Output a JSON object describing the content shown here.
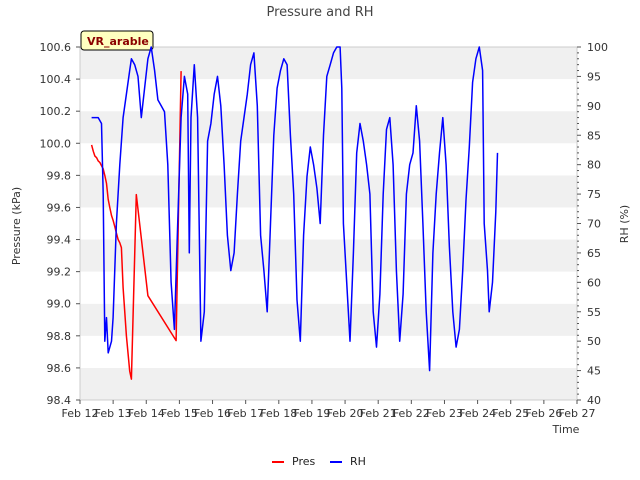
{
  "chart_data": {
    "type": "line",
    "title": "Pressure and RH",
    "xlabel": "Time",
    "ylabel_left": "Pressure (kPa)",
    "ylabel_right": "RH (%)",
    "badge": "VR_arable",
    "x_ticks": [
      "Feb 12",
      "Feb 13",
      "Feb 14",
      "Feb 15",
      "Feb 16",
      "Feb 17",
      "Feb 18",
      "Feb 19",
      "Feb 20",
      "Feb 21",
      "Feb 22",
      "Feb 23",
      "Feb 24",
      "Feb 25",
      "Feb 26",
      "Feb 27"
    ],
    "ylim_left": [
      98.4,
      100.6
    ],
    "ylim_right": [
      40,
      100
    ],
    "y_ticks_left": [
      "98.4",
      "98.6",
      "98.8",
      "99.0",
      "99.2",
      "99.4",
      "99.6",
      "99.8",
      "100.0",
      "100.2",
      "100.4",
      "100.6"
    ],
    "y_ticks_right": [
      "40",
      "45",
      "50",
      "55",
      "60",
      "65",
      "70",
      "75",
      "80",
      "85",
      "90",
      "95",
      "100"
    ],
    "grid": "horizontal bands",
    "legend_position": "bottom-center",
    "colors": {
      "Pres": "#ff0000",
      "RH": "#0000ff"
    },
    "series": [
      {
        "name": "Pres",
        "axis": "left",
        "points": [
          [
            0.35,
            99.99
          ],
          [
            0.4,
            99.95
          ],
          [
            0.45,
            99.92
          ],
          [
            0.5,
            99.91
          ],
          [
            0.55,
            99.89
          ],
          [
            0.6,
            99.88
          ],
          [
            0.65,
            99.86
          ],
          [
            0.7,
            99.84
          ],
          [
            0.75,
            99.8
          ],
          [
            0.8,
            99.75
          ],
          [
            0.85,
            99.65
          ],
          [
            0.9,
            99.6
          ],
          [
            0.95,
            99.55
          ],
          [
            1.0,
            99.52
          ],
          [
            1.05,
            99.48
          ],
          [
            1.1,
            99.44
          ],
          [
            1.15,
            99.4
          ],
          [
            1.2,
            99.38
          ],
          [
            1.25,
            99.35
          ],
          [
            1.3,
            99.1
          ],
          [
            1.4,
            98.8
          ],
          [
            1.5,
            98.58
          ],
          [
            1.55,
            98.53
          ],
          [
            1.7,
            99.68
          ],
          [
            2.05,
            99.05
          ],
          [
            2.9,
            98.77
          ],
          [
            3.05,
            100.45
          ]
        ]
      },
      {
        "name": "RH",
        "axis": "right",
        "points": [
          [
            0.35,
            88
          ],
          [
            0.45,
            88
          ],
          [
            0.55,
            88
          ],
          [
            0.65,
            87
          ],
          [
            0.7,
            75
          ],
          [
            0.75,
            50
          ],
          [
            0.8,
            54
          ],
          [
            0.85,
            48
          ],
          [
            0.95,
            50
          ],
          [
            1.0,
            54
          ],
          [
            1.1,
            70
          ],
          [
            1.2,
            80
          ],
          [
            1.3,
            88
          ],
          [
            1.4,
            92
          ],
          [
            1.5,
            96
          ],
          [
            1.55,
            98
          ],
          [
            1.65,
            97
          ],
          [
            1.75,
            95
          ],
          [
            1.85,
            88
          ],
          [
            1.95,
            93
          ],
          [
            2.05,
            98
          ],
          [
            2.15,
            100
          ],
          [
            2.25,
            96
          ],
          [
            2.35,
            91
          ],
          [
            2.45,
            90
          ],
          [
            2.55,
            89
          ],
          [
            2.65,
            80
          ],
          [
            2.75,
            60
          ],
          [
            2.85,
            52
          ],
          [
            2.95,
            70
          ],
          [
            3.05,
            88
          ],
          [
            3.15,
            95
          ],
          [
            3.25,
            92
          ],
          [
            3.3,
            65
          ],
          [
            3.35,
            88
          ],
          [
            3.45,
            97
          ],
          [
            3.55,
            88
          ],
          [
            3.65,
            50
          ],
          [
            3.75,
            55
          ],
          [
            3.85,
            84
          ],
          [
            3.95,
            87
          ],
          [
            4.05,
            92
          ],
          [
            4.15,
            95
          ],
          [
            4.25,
            90
          ],
          [
            4.35,
            80
          ],
          [
            4.45,
            68
          ],
          [
            4.55,
            62
          ],
          [
            4.65,
            65
          ],
          [
            4.75,
            75
          ],
          [
            4.85,
            84
          ],
          [
            4.95,
            88
          ],
          [
            5.05,
            92
          ],
          [
            5.15,
            97
          ],
          [
            5.25,
            99
          ],
          [
            5.35,
            90
          ],
          [
            5.45,
            68
          ],
          [
            5.55,
            62
          ],
          [
            5.65,
            55
          ],
          [
            5.75,
            70
          ],
          [
            5.85,
            85
          ],
          [
            5.95,
            93
          ],
          [
            6.05,
            96
          ],
          [
            6.15,
            98
          ],
          [
            6.25,
            97
          ],
          [
            6.35,
            85
          ],
          [
            6.45,
            75
          ],
          [
            6.55,
            57
          ],
          [
            6.65,
            50
          ],
          [
            6.75,
            68
          ],
          [
            6.85,
            78
          ],
          [
            6.95,
            83
          ],
          [
            7.05,
            80
          ],
          [
            7.15,
            76
          ],
          [
            7.25,
            70
          ],
          [
            7.35,
            85
          ],
          [
            7.45,
            95
          ],
          [
            7.55,
            97
          ],
          [
            7.65,
            99
          ],
          [
            7.75,
            100
          ],
          [
            7.85,
            100
          ],
          [
            7.9,
            93
          ],
          [
            7.95,
            70
          ],
          [
            8.05,
            60
          ],
          [
            8.15,
            50
          ],
          [
            8.25,
            65
          ],
          [
            8.35,
            82
          ],
          [
            8.45,
            87
          ],
          [
            8.55,
            84
          ],
          [
            8.65,
            80
          ],
          [
            8.75,
            75
          ],
          [
            8.85,
            55
          ],
          [
            8.95,
            49
          ],
          [
            9.05,
            58
          ],
          [
            9.15,
            75
          ],
          [
            9.25,
            86
          ],
          [
            9.35,
            88
          ],
          [
            9.45,
            80
          ],
          [
            9.55,
            62
          ],
          [
            9.65,
            50
          ],
          [
            9.75,
            58
          ],
          [
            9.85,
            75
          ],
          [
            9.95,
            80
          ],
          [
            10.05,
            82
          ],
          [
            10.15,
            90
          ],
          [
            10.25,
            84
          ],
          [
            10.35,
            70
          ],
          [
            10.45,
            55
          ],
          [
            10.55,
            45
          ],
          [
            10.65,
            65
          ],
          [
            10.75,
            75
          ],
          [
            10.85,
            82
          ],
          [
            10.95,
            88
          ],
          [
            11.05,
            80
          ],
          [
            11.15,
            66
          ],
          [
            11.25,
            55
          ],
          [
            11.35,
            49
          ],
          [
            11.45,
            52
          ],
          [
            11.55,
            62
          ],
          [
            11.65,
            74
          ],
          [
            11.75,
            83
          ],
          [
            11.85,
            94
          ],
          [
            11.95,
            98
          ],
          [
            12.05,
            100
          ],
          [
            12.15,
            96
          ],
          [
            12.2,
            70
          ],
          [
            12.3,
            62
          ],
          [
            12.35,
            55
          ],
          [
            12.45,
            60
          ],
          [
            12.55,
            72
          ],
          [
            12.6,
            82
          ]
        ]
      }
    ]
  }
}
